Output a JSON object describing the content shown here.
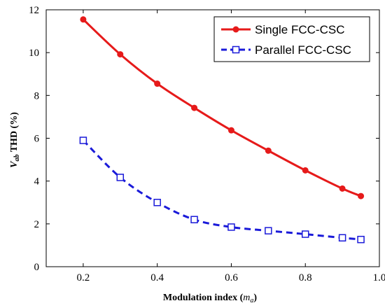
{
  "chart_data": {
    "type": "line",
    "x": [
      0.2,
      0.3,
      0.4,
      0.5,
      0.6,
      0.7,
      0.8,
      0.9,
      0.95
    ],
    "series": [
      {
        "name": "Single FCC-CSC",
        "values": [
          11.55,
          9.92,
          8.55,
          7.42,
          6.37,
          5.42,
          4.5,
          3.65,
          3.3
        ],
        "color": "#e61a1a",
        "line_style": "solid",
        "marker": "filled-circle"
      },
      {
        "name": "Parallel FCC-CSC",
        "values": [
          5.9,
          4.17,
          3.0,
          2.2,
          1.85,
          1.68,
          1.52,
          1.35,
          1.27
        ],
        "color": "#1a1ad9",
        "line_style": "dashed",
        "marker": "open-square"
      }
    ],
    "xlabel": {
      "prefix": "Modulation index (",
      "italic": "m",
      "subscript": "a",
      "suffix": ")"
    },
    "ylabel": {
      "italic": "V",
      "subscript": "ab",
      "suffix": " THD (%)"
    },
    "xlim": [
      0.1,
      1.0
    ],
    "ylim": [
      0,
      12
    ],
    "xticks": [
      0.2,
      0.4,
      0.6,
      0.8,
      1.0
    ],
    "xtick_labels": [
      "0.2",
      "0.4",
      "0.6",
      "0.8",
      "1.0"
    ],
    "yticks": [
      0,
      2,
      4,
      6,
      8,
      10,
      12
    ],
    "ytick_labels": [
      "0",
      "2",
      "4",
      "6",
      "8",
      "10",
      "12"
    ],
    "grid": false,
    "legend_position": "top-right"
  }
}
